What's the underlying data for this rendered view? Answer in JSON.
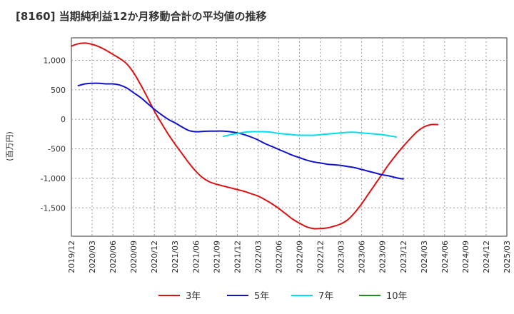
{
  "chart_data": {
    "type": "line",
    "title": "[8160]  当期純利益12か月移動合計の平均値の推移",
    "ylabel": "(百万円)",
    "xlabel": "",
    "ylim": [
      -1980,
      1380
    ],
    "yticks": [
      1000,
      500,
      0,
      -500,
      -1000,
      -1500
    ],
    "ytick_labels": [
      "1,000",
      "500",
      "0",
      "-500",
      "-1,000",
      "-1,500"
    ],
    "x_start": "2019/12",
    "x_step_months": 3,
    "xtick_labels": [
      "2019/12",
      "2020/03",
      "2020/06",
      "2020/09",
      "2020/12",
      "2021/03",
      "2021/06",
      "2021/09",
      "2021/12",
      "2022/03",
      "2022/06",
      "2022/09",
      "2022/12",
      "2023/03",
      "2023/06",
      "2023/09",
      "2023/12",
      "2024/03",
      "2024/06",
      "2024/09",
      "2024/12",
      "2025/03"
    ],
    "grid": true,
    "legend_position": "bottom",
    "series": [
      {
        "name": "3年",
        "color": "#dd1111",
        "start_index": 0,
        "values": [
          1240,
          1280,
          1290,
          1270,
          1230,
          1170,
          1100,
          1030,
          940,
          790,
          590,
          370,
          140,
          -60,
          -250,
          -420,
          -580,
          -740,
          -880,
          -990,
          -1060,
          -1100,
          -1130,
          -1160,
          -1190,
          -1220,
          -1260,
          -1300,
          -1360,
          -1430,
          -1510,
          -1600,
          -1690,
          -1760,
          -1820,
          -1850,
          -1850,
          -1840,
          -1810,
          -1770,
          -1700,
          -1580,
          -1430,
          -1260,
          -1090,
          -920,
          -750,
          -600,
          -460,
          -330,
          -210,
          -130,
          -90,
          -90
        ]
      },
      {
        "name": "5年",
        "color": "#1111cc",
        "start_index": 1,
        "values": [
          570,
          600,
          610,
          610,
          600,
          600,
          580,
          530,
          450,
          370,
          270,
          170,
          80,
          0,
          -60,
          -130,
          -190,
          -210,
          -205,
          -200,
          -200,
          -200,
          -210,
          -230,
          -260,
          -300,
          -350,
          -410,
          -460,
          -510,
          -560,
          -610,
          -650,
          -690,
          -720,
          -740,
          -760,
          -770,
          -780,
          -800,
          -820,
          -850,
          -880,
          -910,
          -940,
          -960,
          -990,
          -1010
        ]
      },
      {
        "name": "7年",
        "color": "#00ddee",
        "start_index": 22,
        "values": [
          -290,
          -260,
          -240,
          -220,
          -210,
          -210,
          -210,
          -220,
          -240,
          -250,
          -260,
          -270,
          -270,
          -270,
          -260,
          -250,
          -240,
          -230,
          -220,
          -220,
          -230,
          -240,
          -250,
          -260,
          -280,
          -300
        ]
      },
      {
        "name": "10年",
        "color": "#228b22",
        "start_index": 0,
        "values": []
      }
    ]
  }
}
